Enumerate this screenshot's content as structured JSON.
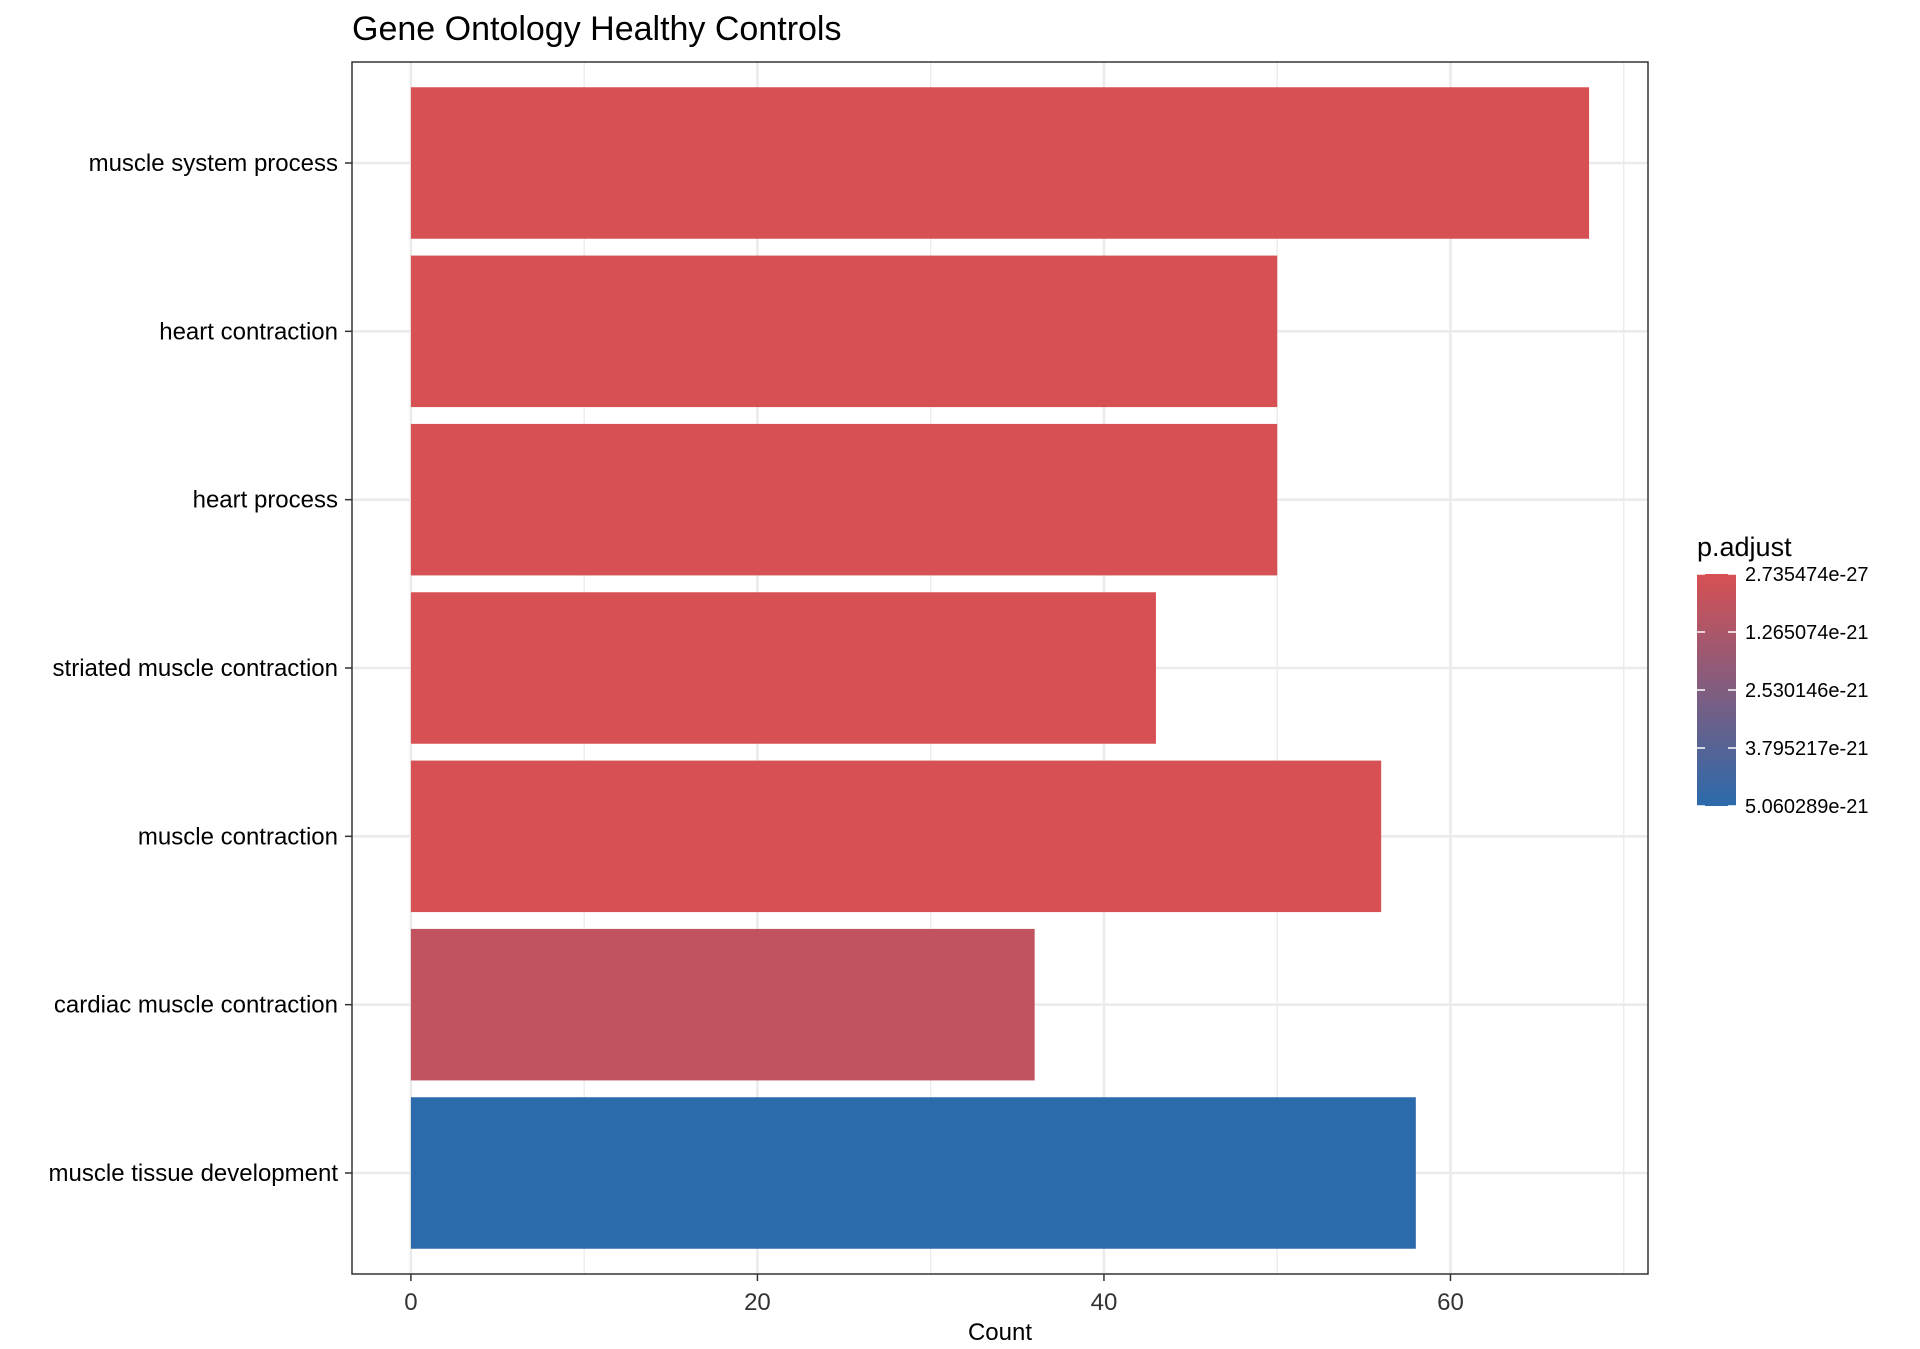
{
  "chart_data": {
    "type": "bar",
    "orientation": "horizontal",
    "title": "Gene Ontology Healthy Controls",
    "xlabel": "Count",
    "ylabel": "",
    "xlim": [
      -3.4,
      71.4
    ],
    "xticks": [
      0,
      20,
      40,
      60
    ],
    "grid": true,
    "categories": [
      "muscle system process",
      "heart contraction",
      "heart process",
      "striated muscle contraction",
      "muscle contraction",
      "cardiac muscle contraction",
      "muscle tissue development"
    ],
    "values": [
      68,
      50,
      50,
      43,
      56,
      36,
      58
    ],
    "p_adjust": [
      2.735474e-27,
      1e-26,
      1e-26,
      3e-26,
      1e-25,
      6.5e-22,
      5.060289e-21
    ],
    "legend": {
      "title": "p.adjust",
      "position": "right",
      "labels": [
        "2.735474e-27",
        "1.265074e-21",
        "2.530146e-21",
        "3.795217e-21",
        "5.060289e-21"
      ],
      "low_color": "#d75053",
      "high_color": "#2b6aab"
    },
    "colors": {
      "bar_low": "#d75053",
      "bar_high": "#2b6aab",
      "grid": "#ebebeb",
      "panel_border": "#333333"
    }
  }
}
